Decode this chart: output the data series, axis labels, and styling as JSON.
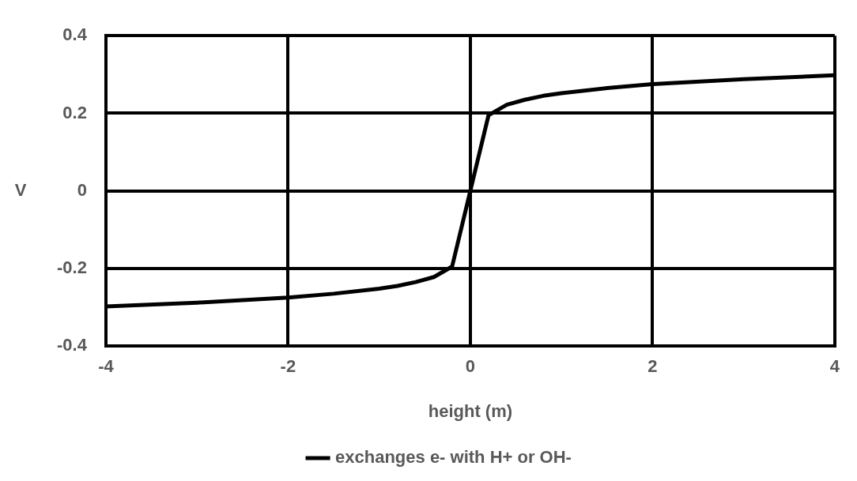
{
  "chart_data": {
    "type": "line",
    "xlabel": "height (m)",
    "ylabel": "V",
    "x": [
      -4,
      -3,
      -2,
      -1.5,
      -1,
      -0.8,
      -0.6,
      -0.4,
      -0.2,
      0,
      0.2,
      0.4,
      0.6,
      0.8,
      1,
      1.5,
      2,
      3,
      4
    ],
    "series": [
      {
        "name": "exchanges e- with H+ or OH-",
        "color": "#000000",
        "values": [
          -0.298,
          -0.288,
          -0.275,
          -0.265,
          -0.252,
          -0.245,
          -0.235,
          -0.222,
          -0.195,
          0,
          0.195,
          0.222,
          0.235,
          0.245,
          0.252,
          0.265,
          0.275,
          0.288,
          0.298
        ]
      }
    ],
    "xlim": [
      -4,
      4
    ],
    "xticks": [
      -4,
      -2,
      0,
      2,
      4
    ],
    "ylim": [
      -0.4,
      0.4
    ],
    "yticks": [
      -0.4,
      -0.2,
      0,
      0.2,
      0.4
    ],
    "grid": true,
    "legend": "bottom",
    "marker": "none",
    "line_style": "solid"
  }
}
